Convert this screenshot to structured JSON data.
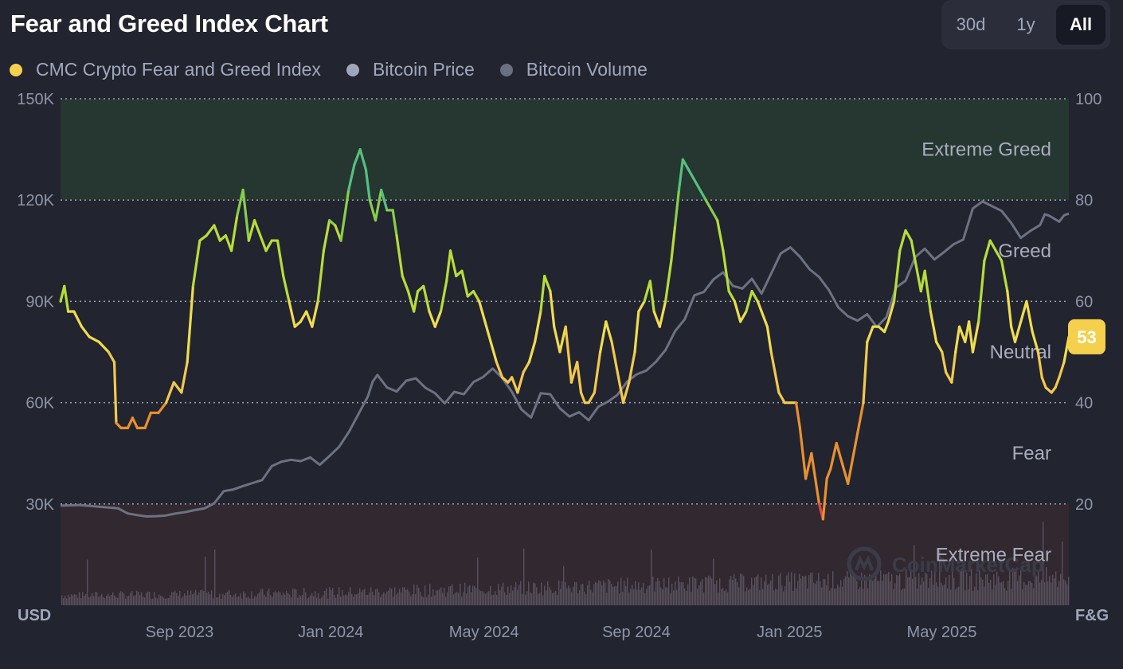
{
  "header": {
    "title": "Fear and Greed Index Chart",
    "ranges": [
      {
        "label": "30d",
        "active": false
      },
      {
        "label": "1y",
        "active": false
      },
      {
        "label": "All",
        "active": true
      }
    ]
  },
  "legend": [
    {
      "label": "CMC Crypto Fear and Greed Index",
      "color": "#f5d04c"
    },
    {
      "label": "Bitcoin Price",
      "color": "#a1a7bb"
    },
    {
      "label": "Bitcoin Volume",
      "color": "#6b7080"
    }
  ],
  "watermark": "CoinMarketCap",
  "chart_data": {
    "type": "line",
    "left_axis": {
      "unit": "USD",
      "ticks": [
        "150K",
        "120K",
        "90K",
        "60K",
        "30K"
      ],
      "range": [
        0,
        150000
      ]
    },
    "right_axis": {
      "unit": "F&G",
      "ticks": [
        "100",
        "80",
        "60",
        "40",
        "20"
      ],
      "range": [
        0,
        100
      ]
    },
    "x_ticks": [
      {
        "label": "Sep 2023",
        "t": 0.118
      },
      {
        "label": "Jan 2024",
        "t": 0.268
      },
      {
        "label": "May 2024",
        "t": 0.42
      },
      {
        "label": "Sep 2024",
        "t": 0.571
      },
      {
        "label": "Jan 2025",
        "t": 0.723
      },
      {
        "label": "May 2025",
        "t": 0.874
      }
    ],
    "zones": [
      {
        "label": "Extreme Greed",
        "from": 80,
        "to": 100,
        "color": "#263631"
      },
      {
        "label": "Greed",
        "from": 60,
        "to": 80
      },
      {
        "label": "Neutral",
        "from": 40,
        "to": 60
      },
      {
        "label": "Fear",
        "from": 20,
        "to": 40
      },
      {
        "label": "Extreme Fear",
        "from": 0,
        "to": 20,
        "color": "#322830"
      }
    ],
    "current_value": "53",
    "series": [
      {
        "name": "CMC Crypto Fear and Greed Index",
        "points": [
          [
            0,
            60
          ],
          [
            0.004,
            63
          ],
          [
            0.008,
            58
          ],
          [
            0.014,
            58
          ],
          [
            0.022,
            55
          ],
          [
            0.03,
            53
          ],
          [
            0.04,
            52
          ],
          [
            0.05,
            50
          ],
          [
            0.056,
            48
          ],
          [
            0.058,
            36
          ],
          [
            0.063,
            35
          ],
          [
            0.07,
            35
          ],
          [
            0.075,
            37
          ],
          [
            0.08,
            35
          ],
          [
            0.088,
            35
          ],
          [
            0.094,
            38
          ],
          [
            0.102,
            38
          ],
          [
            0.11,
            40
          ],
          [
            0.118,
            44
          ],
          [
            0.126,
            42
          ],
          [
            0.132,
            48
          ],
          [
            0.138,
            63
          ],
          [
            0.145,
            72
          ],
          [
            0.152,
            73
          ],
          [
            0.16,
            75
          ],
          [
            0.166,
            72
          ],
          [
            0.172,
            73
          ],
          [
            0.178,
            70
          ],
          [
            0.184,
            77
          ],
          [
            0.19,
            82
          ],
          [
            0.196,
            72
          ],
          [
            0.202,
            76
          ],
          [
            0.208,
            73
          ],
          [
            0.214,
            70
          ],
          [
            0.22,
            72
          ],
          [
            0.226,
            72
          ],
          [
            0.232,
            65
          ],
          [
            0.238,
            60
          ],
          [
            0.244,
            55
          ],
          [
            0.25,
            56
          ],
          [
            0.256,
            58
          ],
          [
            0.262,
            55
          ],
          [
            0.268,
            60
          ],
          [
            0.274,
            70
          ],
          [
            0.28,
            76
          ],
          [
            0.286,
            75
          ],
          [
            0.292,
            72
          ],
          [
            0.3,
            82
          ],
          [
            0.306,
            87
          ],
          [
            0.312,
            90
          ],
          [
            0.318,
            86
          ],
          [
            0.322,
            80
          ],
          [
            0.328,
            76
          ],
          [
            0.334,
            82
          ],
          [
            0.34,
            78
          ],
          [
            0.346,
            78
          ],
          [
            0.35,
            73
          ],
          [
            0.356,
            65
          ],
          [
            0.362,
            62
          ],
          [
            0.368,
            58
          ],
          [
            0.372,
            62
          ],
          [
            0.378,
            63
          ],
          [
            0.384,
            58
          ],
          [
            0.39,
            55
          ],
          [
            0.396,
            58
          ],
          [
            0.402,
            64
          ],
          [
            0.406,
            70
          ],
          [
            0.412,
            65
          ],
          [
            0.418,
            66
          ],
          [
            0.424,
            61
          ],
          [
            0.43,
            62
          ],
          [
            0.436,
            60
          ],
          [
            0.442,
            56
          ],
          [
            0.448,
            52
          ],
          [
            0.454,
            48
          ],
          [
            0.46,
            45
          ],
          [
            0.466,
            44
          ],
          [
            0.47,
            45
          ],
          [
            0.476,
            42
          ],
          [
            0.482,
            46
          ],
          [
            0.488,
            48
          ],
          [
            0.494,
            52
          ],
          [
            0.5,
            58
          ],
          [
            0.504,
            65
          ],
          [
            0.51,
            62
          ],
          [
            0.514,
            55
          ],
          [
            0.52,
            50
          ],
          [
            0.526,
            55
          ],
          [
            0.532,
            44
          ],
          [
            0.538,
            48
          ],
          [
            0.542,
            42
          ],
          [
            0.546,
            40
          ],
          [
            0.55,
            40
          ],
          [
            0.556,
            42
          ],
          [
            0.562,
            50
          ],
          [
            0.568,
            56
          ],
          [
            0.574,
            52
          ],
          [
            0.58,
            46
          ],
          [
            0.586,
            40
          ],
          [
            0.592,
            44
          ],
          [
            0.598,
            50
          ],
          [
            0.602,
            58
          ],
          [
            0.608,
            60
          ],
          [
            0.614,
            64
          ],
          [
            0.618,
            58
          ],
          [
            0.624,
            55
          ],
          [
            0.63,
            60
          ],
          [
            0.636,
            68
          ],
          [
            0.64,
            75
          ],
          [
            0.644,
            82
          ],
          [
            0.648,
            88
          ],
          [
            0.654,
            86
          ],
          [
            0.66,
            84
          ],
          [
            0.666,
            82
          ],
          [
            0.672,
            80
          ],
          [
            0.678,
            78
          ],
          [
            0.684,
            76
          ],
          [
            0.69,
            70
          ],
          [
            0.696,
            62
          ],
          [
            0.702,
            60
          ],
          [
            0.708,
            56
          ],
          [
            0.714,
            58
          ],
          [
            0.72,
            62
          ],
          [
            0.726,
            60
          ],
          [
            0.73,
            58
          ],
          [
            0.736,
            55
          ],
          [
            0.74,
            50
          ],
          [
            0.744,
            46
          ],
          [
            0.748,
            42
          ],
          [
            0.754,
            40
          ],
          [
            0.76,
            40
          ],
          [
            0.766,
            40
          ],
          [
            0.77,
            35
          ],
          [
            0.776,
            25
          ],
          [
            0.782,
            30
          ],
          [
            0.786,
            25
          ],
          [
            0.79,
            20
          ],
          [
            0.794,
            17
          ],
          [
            0.798,
            25
          ],
          [
            0.802,
            27
          ],
          [
            0.808,
            32
          ],
          [
            0.814,
            28
          ],
          [
            0.82,
            24
          ],
          [
            0.826,
            30
          ],
          [
            0.83,
            34
          ],
          [
            0.836,
            40
          ],
          [
            0.84,
            52
          ],
          [
            0.846,
            55
          ],
          [
            0.852,
            55
          ],
          [
            0.858,
            54
          ],
          [
            0.862,
            56
          ],
          [
            0.868,
            60
          ],
          [
            0.874,
            70
          ],
          [
            0.88,
            74
          ],
          [
            0.886,
            72
          ],
          [
            0.89,
            68
          ],
          [
            0.896,
            62
          ],
          [
            0.9,
            66
          ],
          [
            0.906,
            58
          ],
          [
            0.912,
            52
          ],
          [
            0.918,
            50
          ],
          [
            0.922,
            46
          ],
          [
            0.928,
            44
          ],
          [
            0.932,
            50
          ],
          [
            0.936,
            55
          ],
          [
            0.942,
            52
          ],
          [
            0.946,
            56
          ],
          [
            0.95,
            50
          ],
          [
            0.956,
            56
          ],
          [
            0.962,
            68
          ],
          [
            0.968,
            72
          ],
          [
            0.974,
            70
          ],
          [
            0.98,
            68
          ],
          [
            0.986,
            62
          ],
          [
            0.99,
            55
          ],
          [
            0.994,
            52
          ],
          [
            1.0,
            56
          ],
          [
            1.006,
            60
          ],
          [
            1.012,
            54
          ],
          [
            1.018,
            50
          ],
          [
            1.022,
            45
          ],
          [
            1.026,
            43
          ],
          [
            1.032,
            42
          ],
          [
            1.036,
            43
          ],
          [
            1.04,
            45
          ],
          [
            1.045,
            48
          ],
          [
            1.05,
            53
          ]
        ]
      },
      {
        "name": "Bitcoin Price",
        "points": [
          [
            0,
            29500
          ],
          [
            0.02,
            29700
          ],
          [
            0.04,
            29200
          ],
          [
            0.06,
            28700
          ],
          [
            0.07,
            27200
          ],
          [
            0.08,
            26700
          ],
          [
            0.09,
            26300
          ],
          [
            0.1,
            26400
          ],
          [
            0.11,
            26600
          ],
          [
            0.12,
            27200
          ],
          [
            0.13,
            27600
          ],
          [
            0.14,
            28200
          ],
          [
            0.15,
            28700
          ],
          [
            0.16,
            30200
          ],
          [
            0.17,
            33800
          ],
          [
            0.18,
            34300
          ],
          [
            0.19,
            35300
          ],
          [
            0.2,
            36200
          ],
          [
            0.21,
            37100
          ],
          [
            0.22,
            41200
          ],
          [
            0.23,
            42500
          ],
          [
            0.24,
            43100
          ],
          [
            0.25,
            42700
          ],
          [
            0.26,
            43800
          ],
          [
            0.27,
            41600
          ],
          [
            0.28,
            44200
          ],
          [
            0.29,
            46900
          ],
          [
            0.3,
            51200
          ],
          [
            0.31,
            56500
          ],
          [
            0.32,
            61800
          ],
          [
            0.325,
            66200
          ],
          [
            0.33,
            68200
          ],
          [
            0.34,
            64500
          ],
          [
            0.35,
            63300
          ],
          [
            0.36,
            66500
          ],
          [
            0.37,
            67200
          ],
          [
            0.38,
            64400
          ],
          [
            0.39,
            62800
          ],
          [
            0.4,
            59800
          ],
          [
            0.41,
            63200
          ],
          [
            0.42,
            62500
          ],
          [
            0.43,
            66100
          ],
          [
            0.44,
            67600
          ],
          [
            0.45,
            70100
          ],
          [
            0.46,
            67300
          ],
          [
            0.47,
            63200
          ],
          [
            0.48,
            58000
          ],
          [
            0.49,
            55600
          ],
          [
            0.5,
            62800
          ],
          [
            0.51,
            62500
          ],
          [
            0.52,
            58300
          ],
          [
            0.53,
            55900
          ],
          [
            0.54,
            57200
          ],
          [
            0.55,
            54800
          ],
          [
            0.56,
            58800
          ],
          [
            0.57,
            60300
          ],
          [
            0.58,
            62300
          ],
          [
            0.59,
            66200
          ],
          [
            0.6,
            68400
          ],
          [
            0.61,
            69500
          ],
          [
            0.62,
            72100
          ],
          [
            0.63,
            75600
          ],
          [
            0.64,
            81200
          ],
          [
            0.65,
            84700
          ],
          [
            0.66,
            91800
          ],
          [
            0.67,
            92800
          ],
          [
            0.68,
            96500
          ],
          [
            0.69,
            98600
          ],
          [
            0.7,
            94600
          ],
          [
            0.71,
            93800
          ],
          [
            0.72,
            96700
          ],
          [
            0.73,
            92300
          ],
          [
            0.74,
            98200
          ],
          [
            0.75,
            104200
          ],
          [
            0.76,
            106000
          ],
          [
            0.77,
            103200
          ],
          [
            0.78,
            99500
          ],
          [
            0.79,
            97200
          ],
          [
            0.8,
            93400
          ],
          [
            0.81,
            88200
          ],
          [
            0.82,
            85600
          ],
          [
            0.83,
            84300
          ],
          [
            0.84,
            86200
          ],
          [
            0.85,
            82400
          ],
          [
            0.86,
            85300
          ],
          [
            0.87,
            94100
          ],
          [
            0.88,
            96100
          ],
          [
            0.89,
            103100
          ],
          [
            0.9,
            105600
          ],
          [
            0.91,
            102400
          ],
          [
            0.92,
            104600
          ],
          [
            0.93,
            106900
          ],
          [
            0.94,
            108300
          ],
          [
            0.95,
            117500
          ],
          [
            0.96,
            119600
          ],
          [
            0.97,
            118200
          ],
          [
            0.98,
            116800
          ],
          [
            0.99,
            113200
          ],
          [
            1.0,
            108800
          ],
          [
            1.01,
            110900
          ],
          [
            1.02,
            112600
          ],
          [
            1.025,
            115800
          ],
          [
            1.03,
            115300
          ],
          [
            1.04,
            113600
          ],
          [
            1.045,
            115500
          ],
          [
            1.05,
            116000
          ]
        ]
      }
    ]
  }
}
